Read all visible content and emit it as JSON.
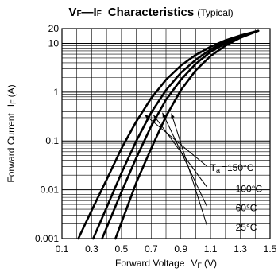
{
  "chart_data": {
    "type": "line",
    "title": {
      "part1": "V",
      "part1_sub": "F",
      "dash": "—",
      "part2": "I",
      "part2_sub": "F",
      "part3": "Characteristics",
      "note": "(Typical)"
    },
    "xlabel": {
      "main": "Forward Voltage",
      "symbol": "V",
      "symbol_sub": "F",
      "unit": "(V)"
    },
    "ylabel": {
      "main": "Forward Current",
      "symbol": "I",
      "symbol_sub": "F",
      "unit": "(A)"
    },
    "x_scale": "linear",
    "y_scale": "log",
    "xlim": [
      0.1,
      1.5
    ],
    "ylim": [
      0.001,
      20
    ],
    "x_ticks": [
      "0.1",
      "0.3",
      "0.5",
      "0.7",
      "0.9",
      "1.1",
      "1.3",
      "1.5"
    ],
    "y_ticks": [
      "0.001",
      "0.01",
      "0.1",
      "1",
      "10",
      "20"
    ],
    "grid": true,
    "parameter_label": {
      "symbol": "T",
      "symbol_sub": "a",
      "eq": "="
    },
    "series": [
      {
        "name": "150°C",
        "x": [
          0.21,
          0.3,
          0.4,
          0.5,
          0.6,
          0.7,
          0.8,
          0.9,
          1.0,
          1.1,
          1.2,
          1.3,
          1.42
        ],
        "y": [
          0.001,
          0.0038,
          0.016,
          0.07,
          0.25,
          0.75,
          1.8,
          3.5,
          5.8,
          8.5,
          11.5,
          14.5,
          18
        ]
      },
      {
        "name": "100°C",
        "x": [
          0.31,
          0.4,
          0.5,
          0.6,
          0.7,
          0.8,
          0.9,
          1.0,
          1.1,
          1.2,
          1.3,
          1.42
        ],
        "y": [
          0.001,
          0.0043,
          0.022,
          0.1,
          0.38,
          1.1,
          2.5,
          4.6,
          7.5,
          10.8,
          14.0,
          18
        ]
      },
      {
        "name": "60°C",
        "x": [
          0.37,
          0.5,
          0.6,
          0.7,
          0.8,
          0.9,
          1.0,
          1.1,
          1.2,
          1.3,
          1.42
        ],
        "y": [
          0.001,
          0.009,
          0.045,
          0.2,
          0.7,
          1.8,
          3.8,
          6.7,
          10.0,
          13.5,
          18
        ]
      },
      {
        "name": "25°C",
        "x": [
          0.46,
          0.6,
          0.7,
          0.8,
          0.9,
          1.0,
          1.1,
          1.2,
          1.3,
          1.42
        ],
        "y": [
          0.001,
          0.014,
          0.07,
          0.32,
          1.1,
          2.8,
          5.5,
          9.0,
          13.0,
          18
        ]
      }
    ]
  }
}
